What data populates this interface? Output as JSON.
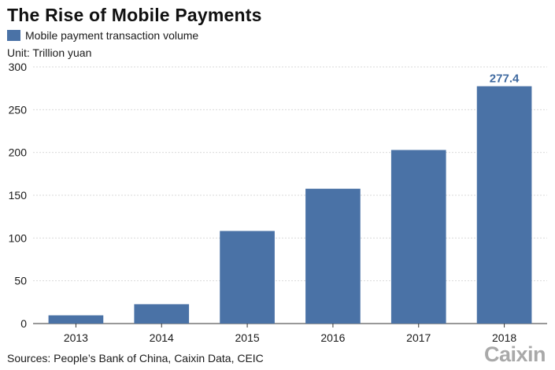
{
  "chart_data": {
    "type": "bar",
    "title": "The Rise of Mobile Payments",
    "legend": [
      "Mobile payment transaction volume"
    ],
    "unit_label": "Unit: Trillion yuan",
    "categories": [
      "2013",
      "2014",
      "2015",
      "2016",
      "2017",
      "2018"
    ],
    "series": [
      {
        "name": "Mobile payment transaction volume",
        "values": [
          9.6,
          22.6,
          108.2,
          157.6,
          202.9,
          277.4
        ],
        "color": "#4a72a6"
      }
    ],
    "data_labels": [
      {
        "category": "2018",
        "text": "277.4"
      }
    ],
    "ylim": [
      0,
      300
    ],
    "yticks": [
      0,
      50,
      100,
      150,
      200,
      250,
      300
    ],
    "grid": true,
    "legend_position": "top-left"
  },
  "source": "Sources: People’s Bank of China, Caixin Data, CEIC",
  "logo": "Caixin"
}
